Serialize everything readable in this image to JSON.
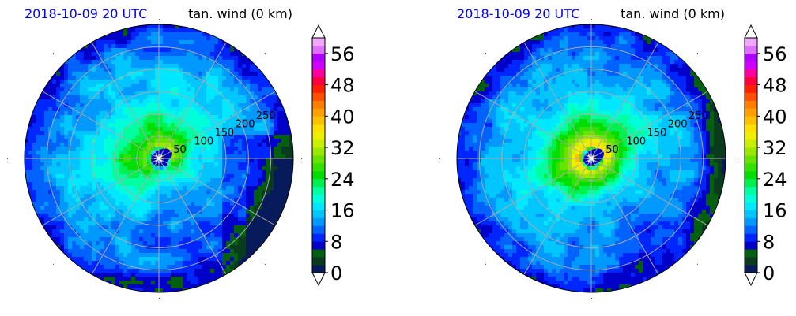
{
  "panels": [
    {
      "title_left": "2018-10-09 20 UTC",
      "title_right": "tan. wind (0 km)",
      "radial_labels": [
        "50",
        "100",
        "150",
        "200",
        "250"
      ],
      "eye_offset": [
        0,
        0
      ],
      "max_band": 33
    },
    {
      "title_left": "2018-10-09 20 UTC",
      "title_right": "tan. wind (0 km)",
      "radial_labels": [
        "50",
        "100",
        "150",
        "200",
        "250"
      ],
      "eye_offset": [
        0,
        0
      ],
      "max_band": 44
    }
  ],
  "colorbar": {
    "ticks": [
      "0",
      "8",
      "16",
      "24",
      "32",
      "40",
      "48",
      "56"
    ],
    "levels": [
      0,
      2,
      4,
      6,
      8,
      10,
      12,
      14,
      16,
      18,
      20,
      22,
      24,
      26,
      28,
      30,
      32,
      34,
      36,
      38,
      40,
      42,
      44,
      46,
      48,
      50,
      52,
      54,
      56,
      58,
      60
    ],
    "colors": [
      "#061a5c",
      "#0a3b1e",
      "#045f10",
      "#0000c8",
      "#0026ff",
      "#0062ff",
      "#0099ff",
      "#00c6ff",
      "#00e8ff",
      "#00ffd8",
      "#00ff9e",
      "#00f050",
      "#00dd00",
      "#33e000",
      "#66e400",
      "#99e800",
      "#c8f000",
      "#eef000",
      "#ffe000",
      "#ffc000",
      "#ffa000",
      "#ff7d00",
      "#ff5000",
      "#ff2000",
      "#ff0040",
      "#ff00a0",
      "#d000ff",
      "#b000ff",
      "#e070ff",
      "#f0a8ff"
    ]
  },
  "chart_data": {
    "type": "heatmap",
    "variable": "tan. wind (0 km)",
    "time": "2018-10-09 20 UTC",
    "radial_ticks": [
      50,
      100,
      150,
      200,
      250
    ],
    "colorbar_range": [
      0,
      60
    ],
    "colorbar_ticks": [
      0,
      8,
      16,
      24,
      32,
      40,
      48,
      56
    ]
  }
}
